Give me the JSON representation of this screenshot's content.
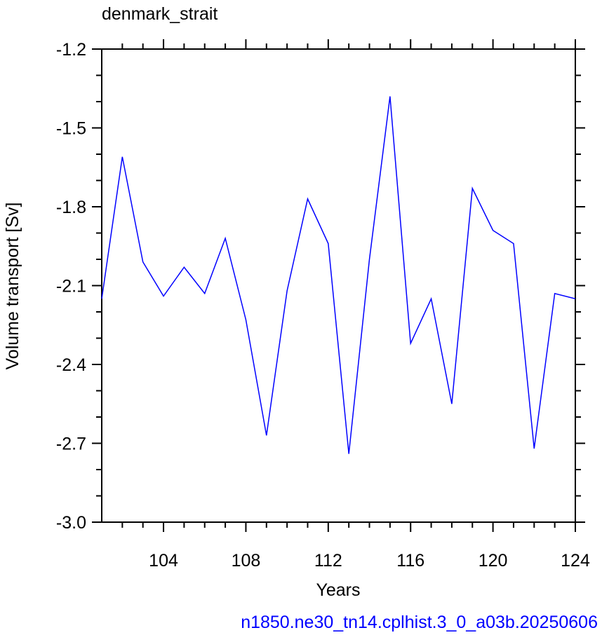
{
  "chart_data": {
    "type": "line",
    "title": "denmark_strait",
    "x_label": "Years",
    "y_label": "Volume transport [Sv]",
    "footnote": "n1850.ne30_tn14.cplhist.3_0_a03b.20250606",
    "x": [
      101,
      102,
      103,
      104,
      105,
      106,
      107,
      108,
      109,
      110,
      111,
      112,
      113,
      114,
      115,
      116,
      117,
      118,
      119,
      120,
      121,
      122,
      123,
      124
    ],
    "series": [
      {
        "name": "denmark_strait",
        "color": "#0000ff",
        "values": [
          -2.15,
          -1.61,
          -2.01,
          -2.14,
          -2.03,
          -2.13,
          -1.92,
          -2.23,
          -2.67,
          -2.12,
          -1.77,
          -1.94,
          -2.74,
          -2.0,
          -1.38,
          -2.32,
          -2.15,
          -2.55,
          -1.73,
          -1.89,
          -1.94,
          -2.72,
          -2.13,
          -2.15
        ]
      }
    ],
    "xlim": [
      101,
      124
    ],
    "xticks": [
      104,
      108,
      112,
      116,
      120,
      124
    ],
    "xminorticks": [
      102,
      103,
      105,
      106,
      107,
      109,
      110,
      111,
      113,
      114,
      115,
      117,
      118,
      119,
      121,
      122,
      123
    ],
    "ylim": [
      -3.0,
      -1.2
    ],
    "yticks": [
      {
        "value": -3.0,
        "label": "-3.0"
      },
      -2.7,
      -2.4,
      -2.1,
      -1.8,
      -1.5,
      -1.2
    ],
    "yminorticks": [
      -2.9,
      -2.8,
      -2.6,
      -2.5,
      -2.3,
      -2.2,
      -2.0,
      -1.9,
      -1.7,
      -1.6,
      -1.4,
      -1.3
    ],
    "grid": false
  }
}
